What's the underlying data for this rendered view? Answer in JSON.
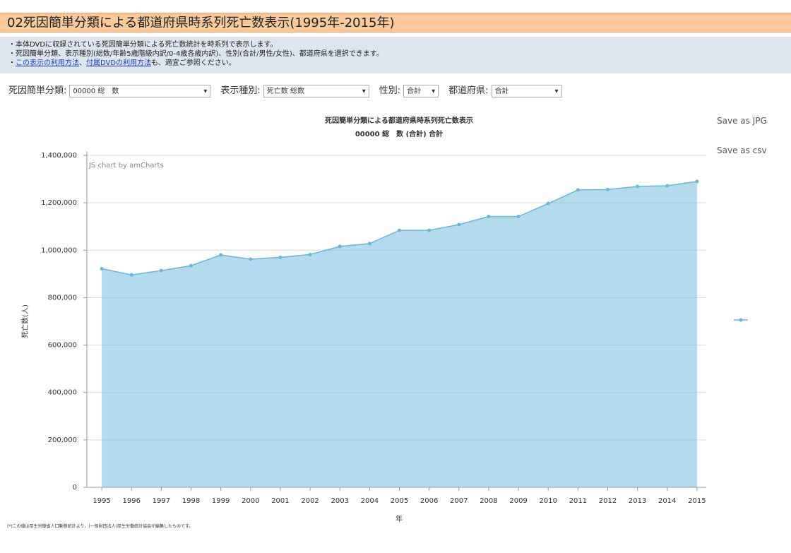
{
  "header": {
    "title": "02死因簡単分類による都道府県時系列死亡数表示(1995年-2015年)"
  },
  "info": {
    "line1": "・本体DVDに収録されている死因簡単分類による死亡数統計を時系列で表示します。",
    "line2": "・死因簡単分類、表示種別(総数/年齢5歳階級内訳/0-4歳各歳内訳)、性別(合計/男性/女性)、都道府県を選択できます。",
    "line3_prefix": "・",
    "link1": "この表示の利用方法",
    "sep": "、",
    "link2": "付属DVDの利用方法",
    "line3_suffix": "も、適宜ご参照ください。"
  },
  "controls": [
    {
      "label": "死因簡単分類:",
      "value": "00000 総　数"
    },
    {
      "label": "表示種別:",
      "value": "死亡数 総数"
    },
    {
      "label": "性別:",
      "value": "合計"
    },
    {
      "label": "都道府県:",
      "value": "合計"
    }
  ],
  "buttons": [
    "Save as JPG",
    "Save as csv"
  ],
  "footnote": "(*)この値は厚生労働省人口動態統計より、(一般財団法人)厚生労働統計協会が編集したものです。",
  "chart_data": {
    "type": "area",
    "title": "死因簡単分類による都道府県時系列死亡数表示",
    "subtitle": "00000 総　数 (合計) 合計",
    "credit": "JS chart by amCharts",
    "y_label": "死亡数(人)",
    "x_label": "年",
    "categories": [
      "1995",
      "1996",
      "1997",
      "1998",
      "1999",
      "2000",
      "2001",
      "2002",
      "2003",
      "2004",
      "2005",
      "2006",
      "2007",
      "2008",
      "2009",
      "2010",
      "2011",
      "2012",
      "2013",
      "2014",
      "2015"
    ],
    "values": [
      922000,
      896000,
      914000,
      935000,
      980000,
      962000,
      970000,
      982000,
      1016000,
      1028000,
      1084000,
      1084000,
      1108000,
      1142000,
      1142000,
      1197000,
      1254000,
      1256000,
      1269000,
      1272000,
      1290000
    ],
    "color": "#67b7dc",
    "ylim": [
      0,
      1400000
    ],
    "yticks": [
      0,
      {
        "value": 200000,
        "label": "200,000"
      },
      {
        "value": 400000,
        "label": "400,000"
      },
      {
        "value": 600000,
        "label": "600,000"
      },
      {
        "value": 800000,
        "label": "800,000"
      },
      {
        "value": 1000000,
        "label": "1,000,000"
      },
      {
        "value": 1200000,
        "label": "1,200,000"
      },
      {
        "value": 1400000,
        "label": "1,400,000"
      }
    ],
    "grid": true
  }
}
